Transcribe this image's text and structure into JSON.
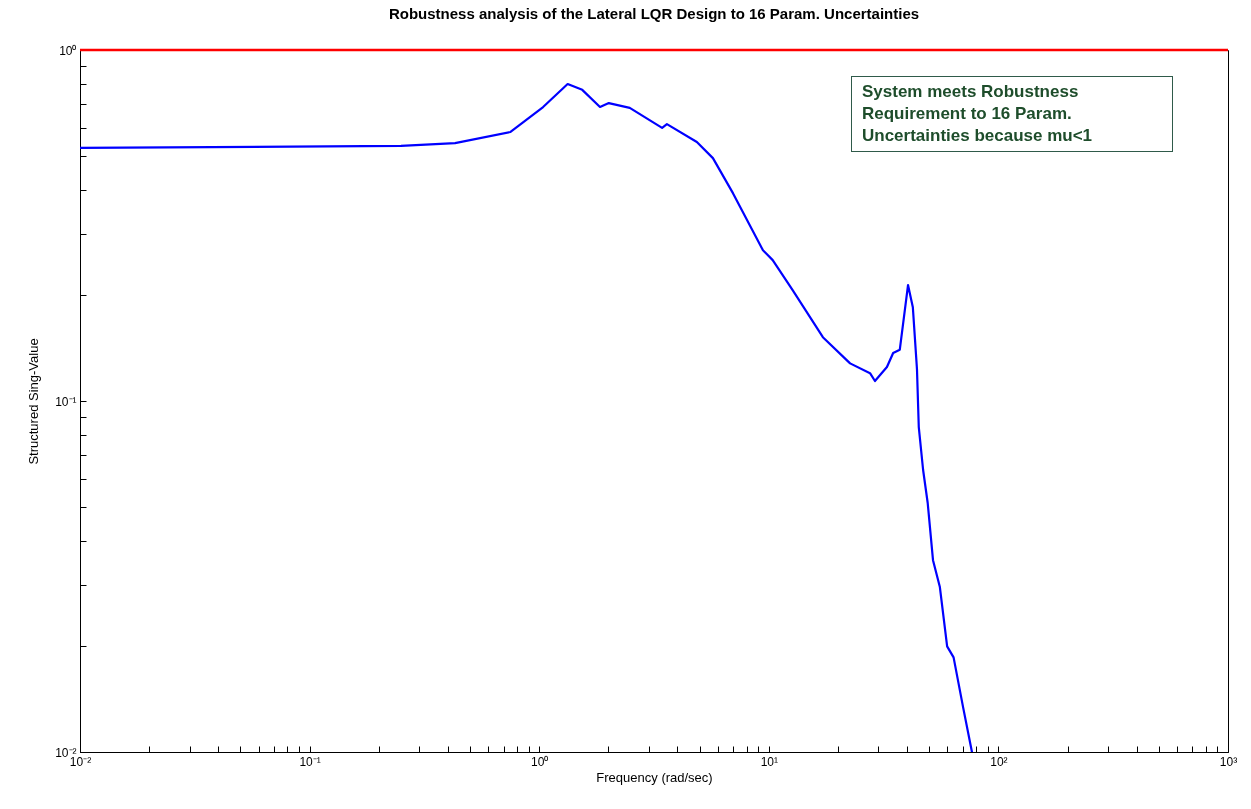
{
  "chart_data": {
    "type": "line",
    "title": "Robustness analysis of the Lateral LQR Design to 16 Param. Uncertainties",
    "xlabel": "Frequency (rad/sec)",
    "ylabel": "Structured Sing-Value",
    "log": "xy",
    "grid": false,
    "xlim": [
      0.01,
      1000
    ],
    "ylim": [
      0.01,
      1
    ],
    "xticks": [
      {
        "value": 0.01,
        "label": "10⁻²"
      },
      {
        "value": 0.02,
        "label": null
      },
      {
        "value": 0.03,
        "label": null
      },
      {
        "value": 0.04,
        "label": null
      },
      {
        "value": 0.05,
        "label": null
      },
      {
        "value": 0.06,
        "label": null
      },
      {
        "value": 0.07,
        "label": null
      },
      {
        "value": 0.08,
        "label": null
      },
      {
        "value": 0.09,
        "label": null
      },
      {
        "value": 0.1,
        "label": "10⁻¹"
      },
      {
        "value": 0.2,
        "label": null
      },
      {
        "value": 0.3,
        "label": null
      },
      {
        "value": 0.4,
        "label": null
      },
      {
        "value": 0.5,
        "label": null
      },
      {
        "value": 0.6,
        "label": null
      },
      {
        "value": 0.7,
        "label": null
      },
      {
        "value": 0.8,
        "label": null
      },
      {
        "value": 0.9,
        "label": null
      },
      {
        "value": 1,
        "label": "10⁰"
      },
      {
        "value": 2,
        "label": null
      },
      {
        "value": 3,
        "label": null
      },
      {
        "value": 4,
        "label": null
      },
      {
        "value": 5,
        "label": null
      },
      {
        "value": 6,
        "label": null
      },
      {
        "value": 7,
        "label": null
      },
      {
        "value": 8,
        "label": null
      },
      {
        "value": 9,
        "label": null
      },
      {
        "value": 10,
        "label": "10¹"
      },
      {
        "value": 20,
        "label": null
      },
      {
        "value": 30,
        "label": null
      },
      {
        "value": 40,
        "label": null
      },
      {
        "value": 50,
        "label": null
      },
      {
        "value": 60,
        "label": null
      },
      {
        "value": 70,
        "label": null
      },
      {
        "value": 80,
        "label": null
      },
      {
        "value": 90,
        "label": null
      },
      {
        "value": 100,
        "label": "10²"
      },
      {
        "value": 200,
        "label": null
      },
      {
        "value": 300,
        "label": null
      },
      {
        "value": 400,
        "label": null
      },
      {
        "value": 500,
        "label": null
      },
      {
        "value": 600,
        "label": null
      },
      {
        "value": 700,
        "label": null
      },
      {
        "value": 800,
        "label": null
      },
      {
        "value": 900,
        "label": null
      },
      {
        "value": 1000,
        "label": "10³"
      }
    ],
    "yticks": [
      {
        "value": 0.01,
        "label": "10⁻²"
      },
      {
        "value": 0.02,
        "label": null
      },
      {
        "value": 0.03,
        "label": null
      },
      {
        "value": 0.04,
        "label": null
      },
      {
        "value": 0.05,
        "label": null
      },
      {
        "value": 0.06,
        "label": null
      },
      {
        "value": 0.07,
        "label": null
      },
      {
        "value": 0.08,
        "label": null
      },
      {
        "value": 0.09,
        "label": null
      },
      {
        "value": 0.1,
        "label": "10⁻¹"
      },
      {
        "value": 0.2,
        "label": null
      },
      {
        "value": 0.3,
        "label": null
      },
      {
        "value": 0.4,
        "label": null
      },
      {
        "value": 0.5,
        "label": null
      },
      {
        "value": 0.6,
        "label": null
      },
      {
        "value": 0.7,
        "label": null
      },
      {
        "value": 0.8,
        "label": null
      },
      {
        "value": 0.9,
        "label": null
      },
      {
        "value": 1,
        "label": "10⁰"
      }
    ],
    "x": [
      0.01,
      0.25,
      0.43,
      0.75,
      1.04,
      1.33,
      1.54,
      1.84,
      2.01,
      2.48,
      3.43,
      3.6,
      4.86,
      5.71,
      6.98,
      9.43,
      10.4,
      12.7,
      17.2,
      22.6,
      27.6,
      29,
      32.7,
      34.8,
      37.2,
      40.4,
      42.4,
      44.2,
      45,
      47,
      49.2,
      51.9,
      55.6,
      59.8,
      63.8,
      70.2,
      76.7
    ],
    "series": [
      {
        "color": "#0000ff",
        "values": [
          0.526,
          0.533,
          0.543,
          0.584,
          0.688,
          0.8,
          0.77,
          0.688,
          0.706,
          0.684,
          0.6,
          0.615,
          0.547,
          0.492,
          0.391,
          0.269,
          0.252,
          0.207,
          0.152,
          0.128,
          0.12,
          0.114,
          0.125,
          0.137,
          0.14,
          0.214,
          0.185,
          0.123,
          0.0843,
          0.0636,
          0.0513,
          0.0352,
          0.0295,
          0.02,
          0.0186,
          0.0134,
          0.01
        ]
      }
    ],
    "ref_lines": [
      {
        "axis": "y",
        "value": 1,
        "color": "#ff0000"
      }
    ],
    "annotations": [
      "System meets Robustness Requirement to 16 Param. Uncertainties because mu<1"
    ]
  }
}
